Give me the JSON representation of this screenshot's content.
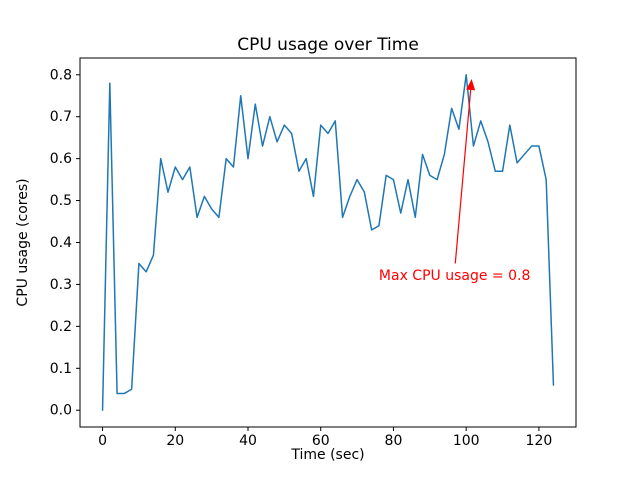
{
  "figure": {
    "background": "#ffffff"
  },
  "chart_data": {
    "type": "line",
    "title": "CPU usage over Time",
    "xlabel": "Time (sec)",
    "ylabel": "CPU usage (cores)",
    "xlim": [
      -6.2,
      130.2
    ],
    "ylim": [
      -0.04,
      0.84
    ],
    "xticks": [
      0,
      20,
      40,
      60,
      80,
      100,
      120
    ],
    "xtick_labels": [
      "0",
      "20",
      "40",
      "60",
      "80",
      "100",
      "120"
    ],
    "yticks": [
      0.0,
      0.1,
      0.2,
      0.3,
      0.4,
      0.5,
      0.6,
      0.7,
      0.8
    ],
    "ytick_labels": [
      "0.0",
      "0.1",
      "0.2",
      "0.3",
      "0.4",
      "0.5",
      "0.6",
      "0.7",
      "0.8"
    ],
    "grid": false,
    "legend": "none",
    "line_color": "#1f77b4",
    "axis_color": "#000000",
    "x": [
      0,
      2,
      4,
      6,
      8,
      10,
      12,
      14,
      16,
      18,
      20,
      22,
      24,
      26,
      28,
      30,
      32,
      34,
      36,
      38,
      40,
      42,
      44,
      46,
      48,
      50,
      52,
      54,
      56,
      58,
      60,
      62,
      64,
      66,
      68,
      70,
      72,
      74,
      76,
      78,
      80,
      82,
      84,
      86,
      88,
      90,
      92,
      94,
      96,
      98,
      100,
      102,
      104,
      106,
      108,
      110,
      112,
      114,
      116,
      118,
      120,
      122,
      124
    ],
    "y": [
      0.0,
      0.78,
      0.04,
      0.04,
      0.05,
      0.35,
      0.33,
      0.37,
      0.6,
      0.52,
      0.58,
      0.55,
      0.58,
      0.46,
      0.51,
      0.48,
      0.46,
      0.6,
      0.58,
      0.75,
      0.6,
      0.73,
      0.63,
      0.7,
      0.64,
      0.68,
      0.66,
      0.57,
      0.6,
      0.51,
      0.68,
      0.66,
      0.69,
      0.46,
      0.51,
      0.55,
      0.52,
      0.43,
      0.44,
      0.56,
      0.55,
      0.47,
      0.55,
      0.46,
      0.61,
      0.56,
      0.55,
      0.61,
      0.72,
      0.67,
      0.8,
      0.63,
      0.69,
      0.64,
      0.57,
      0.57,
      0.68,
      0.59,
      0.61,
      0.63,
      0.63,
      0.55,
      0.06
    ],
    "max_value": 0.8,
    "annotation": {
      "text": "Max CPU usage = 0.8",
      "color": "#ff0000",
      "text_pos": [
        76,
        0.31
      ],
      "arrow_tail": [
        97,
        0.35
      ],
      "arrow_tip": [
        101.5,
        0.79
      ]
    }
  }
}
